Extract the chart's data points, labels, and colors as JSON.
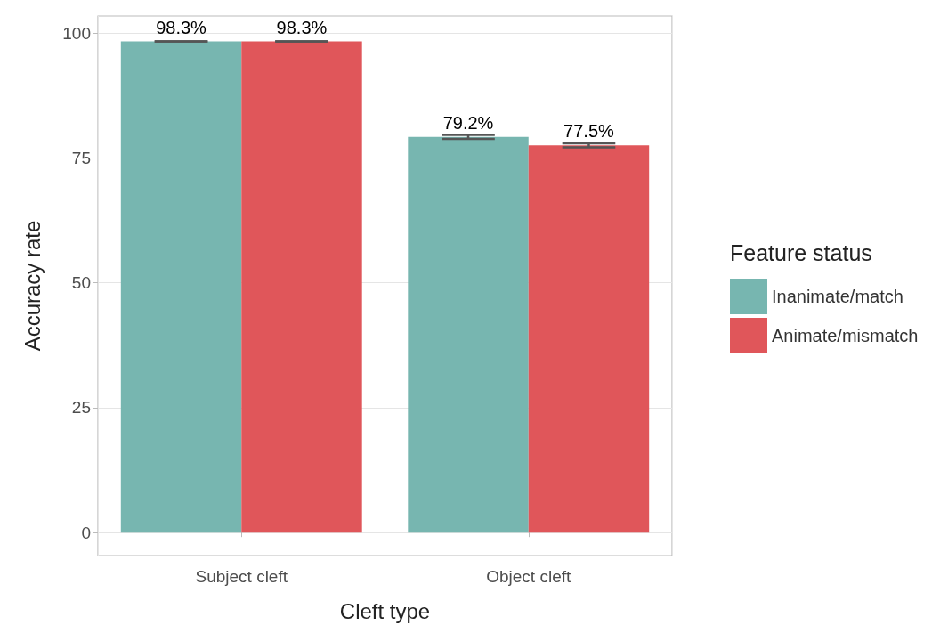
{
  "chart_data": {
    "type": "bar",
    "xlabel": "Cleft type",
    "ylabel": "Accuracy rate",
    "legend_title": "Feature status",
    "legend": "right",
    "categories": [
      "Subject cleft",
      "Object cleft"
    ],
    "series": [
      {
        "name": "Inanimate/match",
        "color": "#77b6b0",
        "values": [
          98.3,
          79.2
        ],
        "errors": [
          0,
          0.4
        ],
        "value_labels": [
          "98.3%",
          "79.2%"
        ]
      },
      {
        "name": "Animate/mismatch",
        "color": "#e0565a",
        "values": [
          98.3,
          77.5
        ],
        "errors": [
          0,
          0.4
        ],
        "value_labels": [
          "98.3%",
          "77.5%"
        ]
      }
    ],
    "ylim": [
      -4.6,
      103.4
    ],
    "yticks": [
      0,
      25,
      50,
      75,
      100
    ],
    "grid": true
  }
}
